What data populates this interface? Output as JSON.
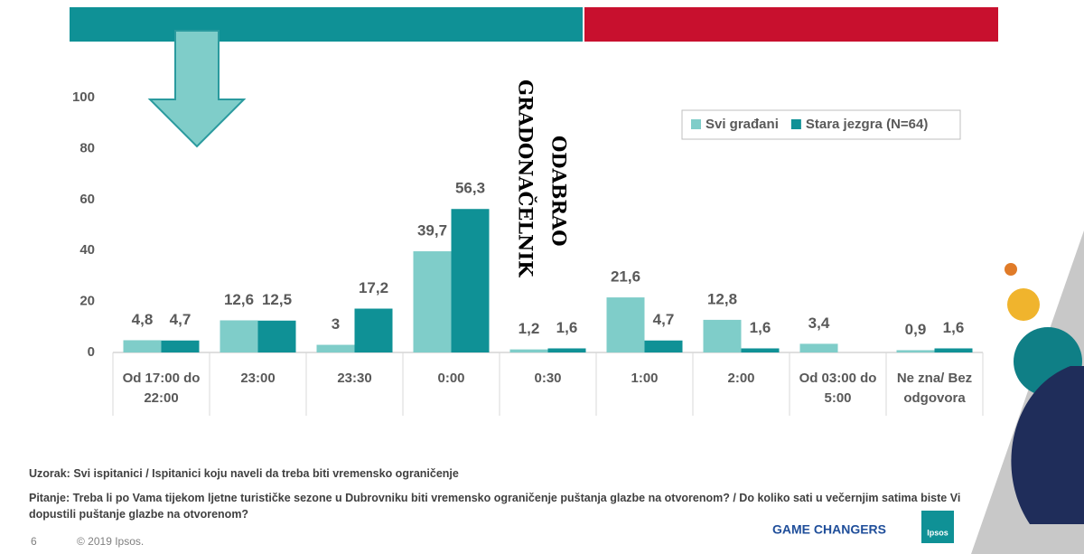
{
  "chart_data": {
    "type": "bar",
    "categories": [
      "Od 17:00 do 22:00",
      "23:00",
      "23:30",
      "0:00",
      "0:30",
      "1:00",
      "2:00",
      "Od 03:00 do 5:00",
      "Ne zna/ Bez odgovora"
    ],
    "series": [
      {
        "name": "Svi građani",
        "color": "#7fcdc9",
        "values": [
          4.8,
          12.6,
          3,
          39.7,
          1.2,
          21.6,
          12.8,
          3.4,
          0.9
        ],
        "value_labels": [
          "4,8",
          "12,6",
          "3",
          "39,7",
          "1,2",
          "21,6",
          "12,8",
          "3,4",
          "0,9"
        ]
      },
      {
        "name": "Stara jezgra (N=64)",
        "color": "#0f9196",
        "values": [
          4.7,
          12.5,
          17.2,
          56.3,
          1.6,
          4.7,
          1.6,
          null,
          1.6
        ],
        "value_labels": [
          "4,7",
          "12,5",
          "17,2",
          "56,3",
          "1,6",
          "4,7",
          "1,6",
          null,
          "1,6"
        ]
      }
    ],
    "ylim": [
      0,
      100
    ],
    "yticks": [
      0,
      20,
      40,
      60,
      80,
      100
    ],
    "grid": false,
    "legend": "upper right",
    "annotations": [
      "ODABRAO",
      "GRADONAČELNIK"
    ]
  },
  "footer": {
    "sample": "Uzorak: Svi ispitanici / Ispitanici koju naveli da treba biti vremensko ograničenje",
    "question": "Pitanje: Treba li po Vama tijekom ljetne turističke sezone u Dubrovniku biti vremensko ograničenje puštanja glazbe na otvorenom? / Do koliko sati u večernjim satima biste Vi dopustili puštanje glazbe na otvorenom?",
    "page_number": "6",
    "copyright": "© 2019 Ipsos.",
    "tagline": "GAME CHANGERS",
    "logo": "Ipsos"
  }
}
